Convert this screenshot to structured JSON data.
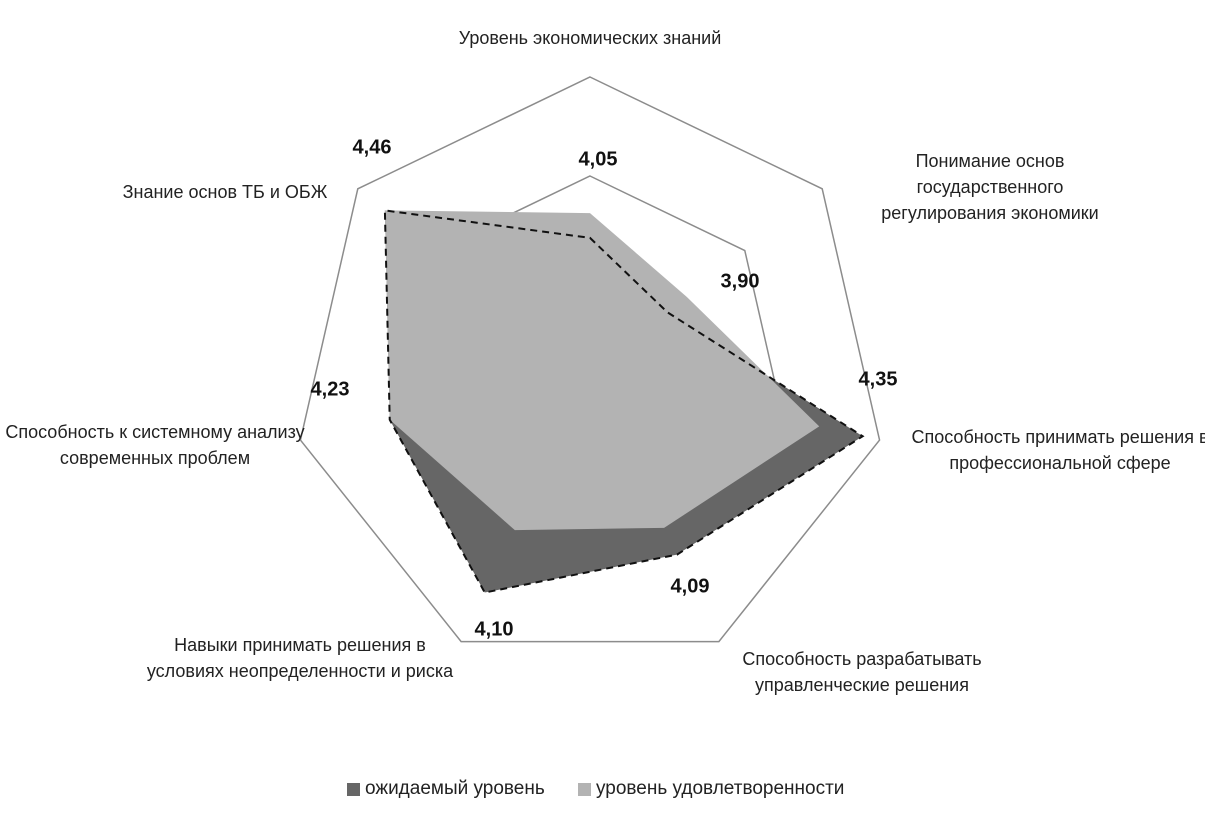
{
  "chart_data": {
    "type": "radar",
    "categories": [
      "Уровень экономических знаний",
      "Понимание основ государственного регулирования экономики",
      "Способность принимать решения в профессиональной сфере",
      "Способность разрабатывать управленческие решения",
      "Навыки принимать решения в условиях неопределенности и риска",
      "Способность к системному анализу современных проблем",
      "Знание основ ТБ и ОБЖ"
    ],
    "series": [
      {
        "name": "ожидаемый уровень",
        "color": "#666666",
        "values": [
          3.95,
          3.8,
          4.53,
          4.21,
          4.38,
          4.23,
          4.46
        ]
      },
      {
        "name": "уровень удовлетворенности",
        "color": "#b3b3b3",
        "values": [
          4.05,
          3.9,
          4.35,
          4.09,
          4.1,
          4.23,
          4.46
        ],
        "value_labels": [
          "4,05",
          "3,90",
          "4,35",
          "4,09",
          "4,10",
          "4,23",
          "4,46"
        ]
      }
    ],
    "ylim": [
      3.4,
      4.6
    ],
    "yticks": [
      3.4,
      3.8,
      4.2,
      4.6
    ],
    "grid": true
  }
}
